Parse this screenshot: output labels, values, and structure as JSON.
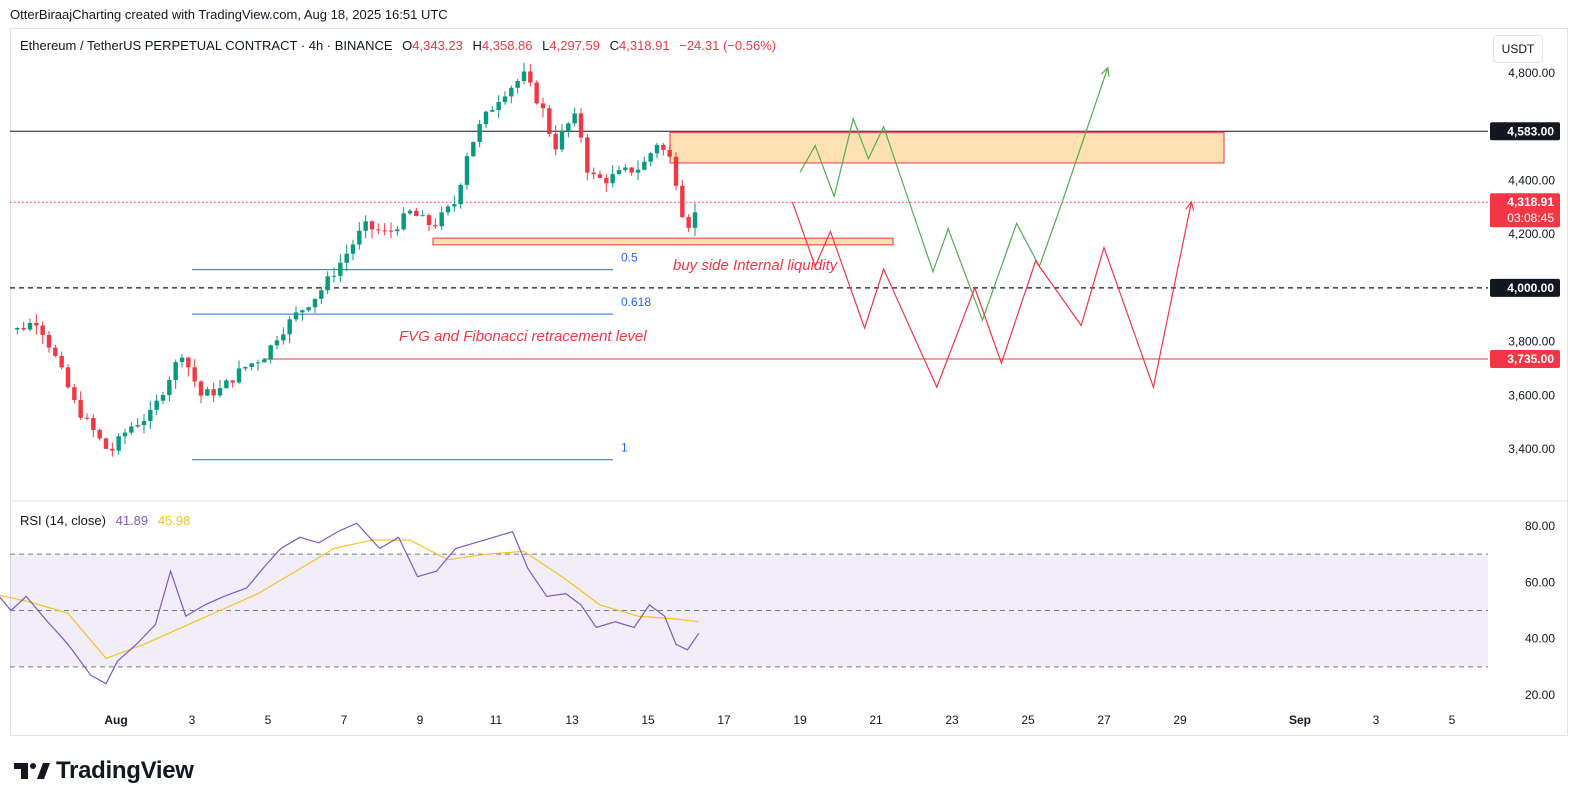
{
  "header": {
    "text": "OtterBiraajCharting created with TradingView.com, Aug 18, 2025 16:51 UTC"
  },
  "legend": {
    "symbol": "Ethereum / TetherUS PERPETUAL CONTRACT · 4h · BINANCE",
    "o_label": "O",
    "o": "4,343.23",
    "h_label": "H",
    "h": "4,358.86",
    "l_label": "L",
    "l": "4,297.59",
    "c_label": "C",
    "c": "4,318.91",
    "change": "−24.31 (−0.56%)"
  },
  "currency_button": "USDT",
  "brand": "TradingView",
  "colors": {
    "up": "#089981",
    "down": "#f23645",
    "rsi": "#7e57c2",
    "rsi_ma": "#f7c325",
    "fib": "#2962ff",
    "zone": "#ffe0b2"
  },
  "chart_data": [
    {
      "type": "candlestick",
      "title": "Ethereum / TetherUS PERPETUAL CONTRACT · 4h · BINANCE",
      "y_axis": {
        "ylim": [
          3300,
          4900
        ],
        "ticks": [
          "4,800.00",
          "4,400.00",
          "4,200.00",
          "3,800.00",
          "3,600.00",
          "3,400.00"
        ]
      },
      "x_axis": {
        "ticks": [
          "Aug",
          "3",
          "5",
          "7",
          "9",
          "11",
          "13",
          "15",
          "17",
          "19",
          "21",
          "23",
          "25",
          "27",
          "29",
          "Sep",
          "3",
          "5"
        ]
      },
      "price_badges": [
        {
          "label": "4,583.00",
          "style": "dark"
        },
        {
          "label": "4,318.91",
          "sub": "03:08:45",
          "style": "red"
        },
        {
          "label": "4,000.00",
          "style": "dark"
        },
        {
          "label": "3,735.00",
          "style": "red"
        }
      ],
      "horizontal_levels": [
        {
          "value": 4583,
          "style": "solid",
          "color": "#131722"
        },
        {
          "value": 4318.91,
          "style": "dotted",
          "color": "#f23645"
        },
        {
          "value": 4000,
          "style": "dashed",
          "color": "#131722"
        },
        {
          "value": 3735,
          "style": "solid",
          "color": "#f23645"
        }
      ],
      "fib_levels": [
        {
          "label": "0.5",
          "value": 4068
        },
        {
          "label": "0.618",
          "value": 3902
        },
        {
          "label": "1",
          "value": 3360
        }
      ],
      "zones": [
        {
          "y_top": 4578,
          "y_bottom": 4465,
          "label": ""
        },
        {
          "y_top": 4185,
          "y_bottom": 4160,
          "label": ""
        }
      ],
      "annotations": [
        {
          "text": "buy side Internal liquidity",
          "color": "#f23645"
        },
        {
          "text": "FVG and Fibonacci retracement level",
          "color": "#f23645"
        }
      ],
      "scenario_green": [
        [
          19.0,
          4430
        ],
        [
          19.4,
          4530
        ],
        [
          19.9,
          4340
        ],
        [
          20.4,
          4630
        ],
        [
          20.8,
          4480
        ],
        [
          21.2,
          4600
        ],
        [
          22.5,
          4060
        ],
        [
          22.9,
          4220
        ],
        [
          23.8,
          3880
        ],
        [
          24.7,
          4240
        ],
        [
          25.3,
          4080
        ],
        [
          25.9,
          4320
        ],
        [
          27.1,
          4820
        ]
      ],
      "scenario_red": [
        [
          18.8,
          4320
        ],
        [
          19.4,
          4080
        ],
        [
          19.8,
          4210
        ],
        [
          20.7,
          3850
        ],
        [
          21.2,
          4070
        ],
        [
          22.6,
          3630
        ],
        [
          23.6,
          4000
        ],
        [
          24.3,
          3720
        ],
        [
          25.2,
          4100
        ],
        [
          26.4,
          3860
        ],
        [
          27.0,
          4150
        ],
        [
          28.3,
          3630
        ],
        [
          29.3,
          4320
        ]
      ]
    },
    {
      "type": "line",
      "title": "RSI (14, close)",
      "series": [
        {
          "name": "RSI (14, close)",
          "last": "41.89",
          "color": "#7e57c2"
        },
        {
          "name": "",
          "last": "45.98",
          "color": "#f7c325"
        }
      ],
      "y_axis": {
        "ylim": [
          15,
          85
        ],
        "ticks": [
          "80.00",
          "60.00",
          "40.00",
          "20.00"
        ]
      },
      "bands": [
        70,
        50,
        30
      ]
    }
  ]
}
